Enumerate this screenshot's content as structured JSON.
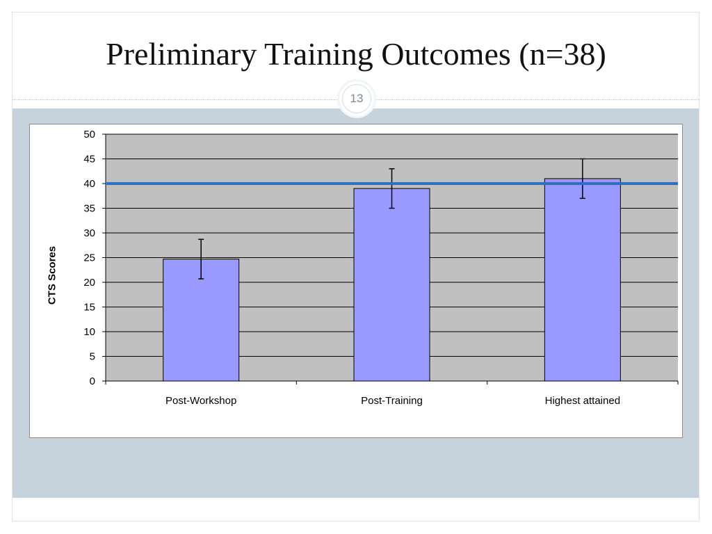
{
  "slide": {
    "title": "Preliminary Training Outcomes (n=38)",
    "page_number": "13"
  },
  "colors": {
    "plot_background": "#c0c0c0",
    "bar_fill": "#9999ff",
    "bar_stroke": "#000000",
    "reference_line": "#2e6fc0",
    "content_band": "#c6d3dc"
  },
  "chart_data": {
    "type": "bar",
    "categories": [
      "Post-Workshop",
      "Post-Training",
      "Highest attained"
    ],
    "values": [
      24.7,
      39,
      41
    ],
    "error_bars": [
      {
        "low": 20.7,
        "high": 28.7
      },
      {
        "low": 35,
        "high": 43
      },
      {
        "low": 37,
        "high": 45
      }
    ],
    "reference_line": 40,
    "title": "",
    "xlabel": "",
    "ylabel": "CTS Scores",
    "ylim": [
      0,
      50
    ],
    "yticks": [
      0,
      5,
      10,
      15,
      20,
      25,
      30,
      35,
      40,
      45,
      50
    ],
    "grid": true,
    "legend": "none"
  }
}
